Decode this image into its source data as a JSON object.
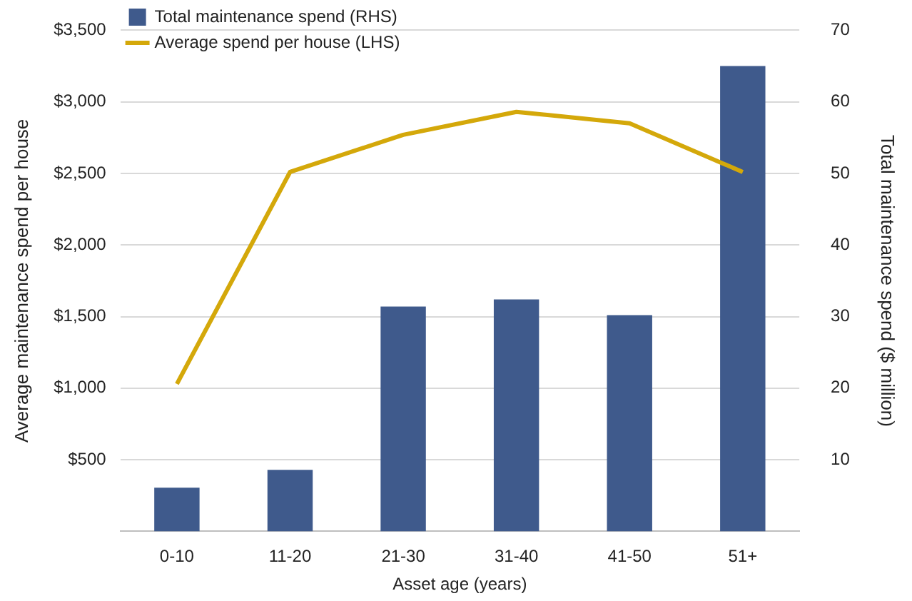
{
  "chart_data": {
    "type": "bar",
    "xlabel": "Asset age (years)",
    "ylabel": "Average maintenance spend per house",
    "y2label": "Total maintenance spend ($ million)",
    "categories": [
      "0-10",
      "11-20",
      "21-30",
      "31-40",
      "41-50",
      "51+"
    ],
    "series": [
      {
        "name": "Total maintenance spend (RHS)",
        "axis": "y2",
        "color": "#3f5a8c",
        "values": [
          6.1,
          8.6,
          31.4,
          32.4,
          30.2,
          65
        ]
      },
      {
        "name": "Average spend per house (LHS)",
        "type": "line",
        "color": "#d4a80a",
        "values": [
          1030,
          2510,
          2770,
          2930,
          2850,
          2510
        ]
      }
    ],
    "ylim": [
      0,
      3500
    ],
    "yticks": [
      {
        "value": 500,
        "label": "$500"
      },
      {
        "value": 1000,
        "label": "$1,000"
      },
      {
        "value": 1500,
        "label": "$1,500"
      },
      {
        "value": 2000,
        "label": "$2,000"
      },
      {
        "value": 2500,
        "label": "$2,500"
      },
      {
        "value": 3000,
        "label": "$3,000"
      },
      {
        "value": 3500,
        "label": "$3,500"
      }
    ],
    "y2lim": [
      0,
      70
    ],
    "y2ticks": [
      10,
      20,
      30,
      40,
      50,
      60,
      70
    ],
    "grid": "y",
    "legend": "top left",
    "marker": "none"
  }
}
